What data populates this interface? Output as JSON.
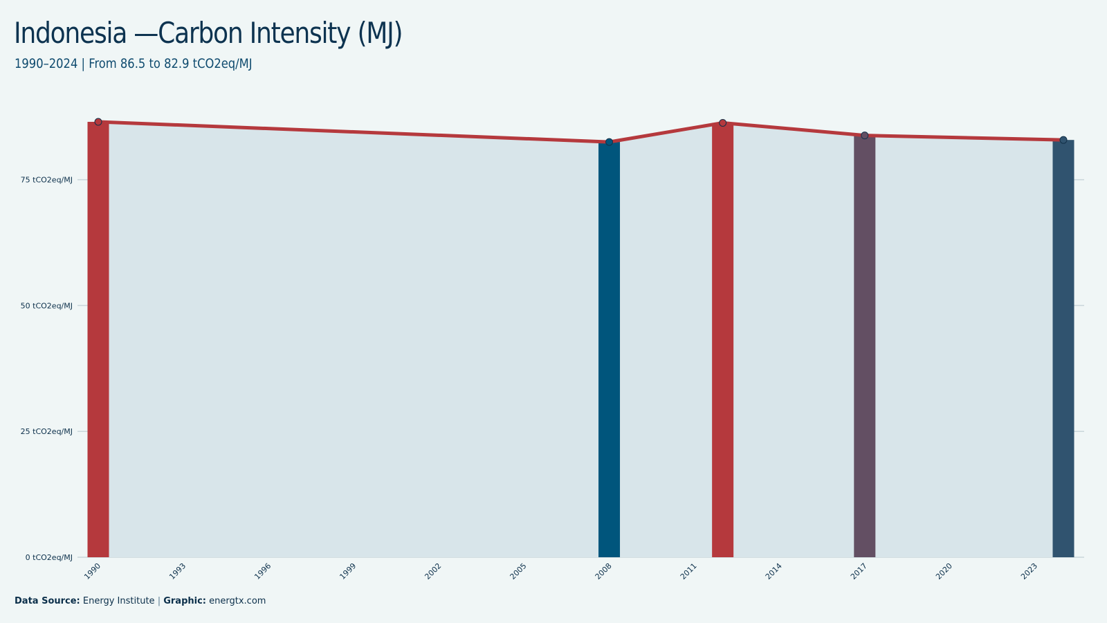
{
  "header": {
    "title": "Indonesia —Carbon Intensity (MJ)",
    "subtitle": "1990–2024 | From 86.5 to 82.9 tCO2eq/MJ"
  },
  "footer": {
    "source_label": "Data Source:",
    "source_value": "Energy Institute",
    "separator": "|",
    "graphic_label": "Graphic:",
    "graphic_value": "energtx.com"
  },
  "chart_data": {
    "type": "area",
    "title": "Indonesia —Carbon Intensity (MJ)",
    "subtitle": "1990–2024 | From 86.5 to 82.9 tCO2eq/MJ",
    "xlabel": "",
    "ylabel": "",
    "x_ticks": [
      1990,
      1993,
      1996,
      1999,
      2002,
      2005,
      2008,
      2011,
      2014,
      2017,
      2020,
      2023
    ],
    "y_ticks": [
      {
        "value": 0,
        "label": "0 tCO2eq/MJ"
      },
      {
        "value": 25,
        "label": "25 tCO2eq/MJ"
      },
      {
        "value": 50,
        "label": "50 tCO2eq/MJ"
      },
      {
        "value": 75,
        "label": "75 tCO2eq/MJ"
      }
    ],
    "xlim": [
      1990,
      2024
    ],
    "ylim": [
      0,
      86.5
    ],
    "grid": true,
    "series": [
      {
        "x": [
          1990,
          2008,
          2012,
          2017,
          2024
        ],
        "values": [
          86.5,
          82.5,
          86.3,
          83.8,
          82.9
        ],
        "line_color": "#b5393d",
        "area_color": "#d8e5ea"
      }
    ],
    "highlight_bars": [
      {
        "x": 1990,
        "value": 86.5,
        "color": "#b5393d"
      },
      {
        "x": 2008,
        "value": 82.5,
        "color": "#00557c"
      },
      {
        "x": 2012,
        "value": 86.3,
        "color": "#b5393d"
      },
      {
        "x": 2017,
        "value": 83.8,
        "color": "#634f63"
      },
      {
        "x": 2024,
        "value": 82.9,
        "color": "#30536f"
      }
    ]
  }
}
